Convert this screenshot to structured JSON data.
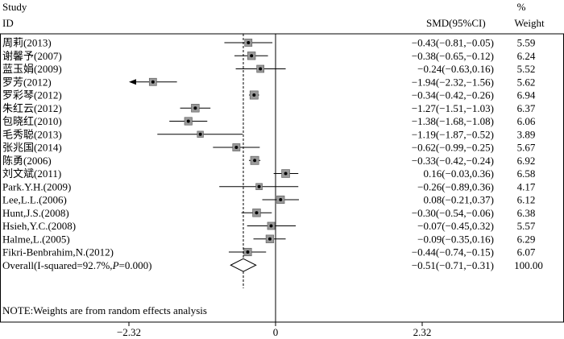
{
  "header": {
    "study_line1": "Study",
    "study_line2": "ID",
    "smd": "SMD(95%CI)",
    "weight_line1": "%",
    "weight_line2": "Weight"
  },
  "note": "NOTE:Weights are from random effects analysis",
  "chart_data": {
    "type": "forest",
    "x_ticks": [
      -2.32,
      0,
      2.32
    ],
    "x_tick_labels": [
      "−2.32",
      "0",
      "2.32"
    ],
    "null_line": 0,
    "reference_line": -0.51,
    "studies": [
      {
        "id": "周莉(2013)",
        "smd": -0.43,
        "lo": -0.81,
        "hi": -0.05,
        "ci_text": "−0.43(−0.81,−0.05)",
        "weight": "5.59"
      },
      {
        "id": "谢馨予(2007)",
        "smd": -0.38,
        "lo": -0.65,
        "hi": -0.12,
        "ci_text": "−0.38(−0.65,−0.12)",
        "weight": "6.24"
      },
      {
        "id": "蓝玉娟(2009)",
        "smd": -0.24,
        "lo": -0.63,
        "hi": 0.16,
        "ci_text": "−0.24(−0.63,0.16)",
        "weight": "5.52"
      },
      {
        "id": "罗芳(2012)",
        "smd": -1.94,
        "lo": -2.32,
        "hi": -1.56,
        "ci_text": "−1.94(−2.32,−1.56)",
        "weight": "5.62",
        "arrow_left": true
      },
      {
        "id": "罗彩琴(2012)",
        "smd": -0.34,
        "lo": -0.42,
        "hi": -0.26,
        "ci_text": "−0.34(−0.42,−0.26)",
        "weight": "6.94"
      },
      {
        "id": "朱红云(2012)",
        "smd": -1.27,
        "lo": -1.51,
        "hi": -1.03,
        "ci_text": "−1.27(−1.51,−1.03)",
        "weight": "6.37"
      },
      {
        "id": "包晓红(2010)",
        "smd": -1.38,
        "lo": -1.68,
        "hi": -1.08,
        "ci_text": "−1.38(−1.68,−1.08)",
        "weight": "6.06"
      },
      {
        "id": "毛秀聪(2013)",
        "smd": -1.19,
        "lo": -1.87,
        "hi": -0.52,
        "ci_text": "−1.19(−1.87,−0.52)",
        "weight": "3.89"
      },
      {
        "id": "张兆国(2014)",
        "smd": -0.62,
        "lo": -0.99,
        "hi": -0.25,
        "ci_text": "−0.62(−0.99,−0.25)",
        "weight": "5.67"
      },
      {
        "id": "陈勇(2006)",
        "smd": -0.33,
        "lo": -0.42,
        "hi": -0.24,
        "ci_text": "−0.33(−0.42,−0.24)",
        "weight": "6.92"
      },
      {
        "id": "刘文斌(2011)",
        "smd": 0.16,
        "lo": -0.03,
        "hi": 0.36,
        "ci_text": "0.16(−0.03,0.36)",
        "weight": "6.58"
      },
      {
        "id": "Park.Y.H.(2009)",
        "smd": -0.26,
        "lo": -0.89,
        "hi": 0.36,
        "ci_text": "−0.26(−0.89,0.36)",
        "weight": "4.17"
      },
      {
        "id": "Lee,L.L.(2006)",
        "smd": 0.08,
        "lo": -0.21,
        "hi": 0.37,
        "ci_text": "0.08(−0.21,0.37)",
        "weight": "6.12"
      },
      {
        "id": "Hunt,J.S.(2008)",
        "smd": -0.3,
        "lo": -0.54,
        "hi": -0.06,
        "ci_text": "−0.30(−0.54,−0.06)",
        "weight": "6.38"
      },
      {
        "id": "Hsieh,Y.C.(2008)",
        "smd": -0.07,
        "lo": -0.45,
        "hi": 0.32,
        "ci_text": "−0.07(−0.45,0.32)",
        "weight": "5.57"
      },
      {
        "id": "Halme,L.(2005)",
        "smd": -0.09,
        "lo": -0.35,
        "hi": 0.16,
        "ci_text": "−0.09(−0.35,0.16)",
        "weight": "6.29"
      },
      {
        "id": "Fikri-Benbrahim,N.(2012)",
        "smd": -0.44,
        "lo": -0.74,
        "hi": -0.15,
        "ci_text": "−0.44(−0.74,−0.15)",
        "weight": "6.07"
      }
    ],
    "overall": {
      "label_prefix": "Overall(I-squared=92.7%,",
      "label_p": "P",
      "label_suffix": "=0.000)",
      "smd": -0.51,
      "lo": -0.71,
      "hi": -0.31,
      "ci_text": "−0.51(−0.71,−0.31)",
      "weight": "100.00"
    }
  }
}
